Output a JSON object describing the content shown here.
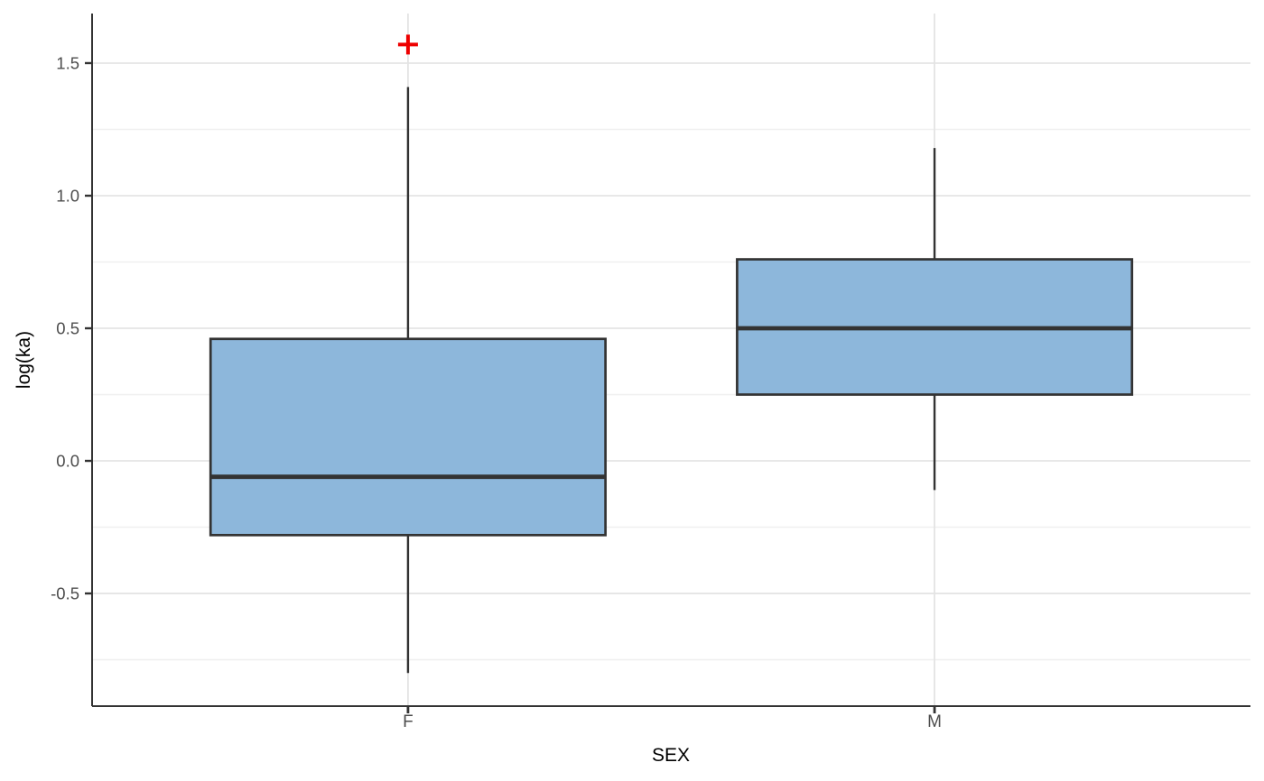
{
  "chart_data": {
    "type": "boxplot",
    "title": "",
    "xlabel": "SEX",
    "ylabel": "log(ka)",
    "categories": [
      "F",
      "M"
    ],
    "series": [
      {
        "category": "F",
        "whisker_low": -0.8,
        "q1": -0.28,
        "median": -0.06,
        "q3": 0.46,
        "whisker_high": 1.41,
        "outliers": [
          1.57
        ]
      },
      {
        "category": "M",
        "whisker_low": -0.11,
        "q1": 0.25,
        "median": 0.5,
        "q3": 0.76,
        "whisker_high": 1.18,
        "outliers": []
      }
    ],
    "y_ticks": [
      -0.5,
      0.0,
      0.5,
      1.0,
      1.5
    ],
    "y_tick_labels": [
      "-0.5",
      "0.0",
      "0.5",
      "1.0",
      "1.5"
    ],
    "y_minor_ticks": [
      -0.75,
      -0.25,
      0.25,
      0.75,
      1.25
    ],
    "ylim": [
      -0.925,
      1.687
    ],
    "grid": true,
    "legend": "none",
    "colors": {
      "box_fill": "#8DB7DB",
      "box_stroke": "#333333",
      "median_stroke": "#333333",
      "whisker_stroke": "#333333",
      "outlier": "#EE0000",
      "grid_major": "#E4E4E4",
      "grid_minor": "#F0F0F0",
      "axis_line": "#333333",
      "tick_mark": "#333333",
      "tick_label": "#4D4D4D",
      "axis_title": "#000000",
      "background": "#FFFFFF"
    }
  }
}
